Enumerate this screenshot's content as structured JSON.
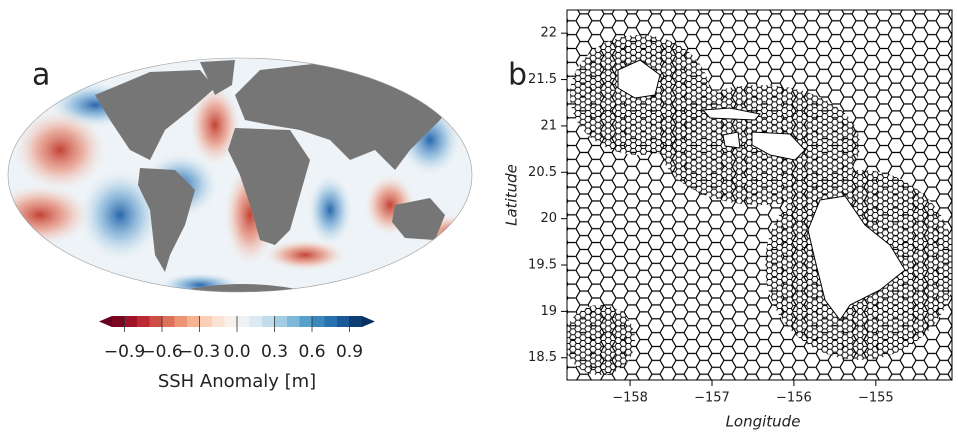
{
  "chart_data": [
    {
      "type": "map",
      "panel_label": "a",
      "colorbar": {
        "label": "SSH Anomaly [m]",
        "lim": [
          -1,
          1
        ],
        "ticks": [
          {
            "value": -0.9,
            "label": "−0.9"
          },
          {
            "value": -0.6,
            "label": "−0.6"
          },
          {
            "value": -0.3,
            "label": "−0.3"
          },
          {
            "value": 0,
            "label": "0.0"
          },
          0.3,
          0.6,
          0.9
        ],
        "colors": [
          "#67001f",
          "#b2182b",
          "#d6604d",
          "#f4a582",
          "#fddbc7",
          "#f7f7f7",
          "#d1e5f0",
          "#92c5de",
          "#4393c3",
          "#2166ac",
          "#053061"
        ]
      }
    },
    {
      "type": "mesh",
      "panel_label": "b",
      "xlabel": "Longitude",
      "ylabel": "Latitude",
      "xlim": [
        -158.77,
        -154.07
      ],
      "ylim": [
        18.26,
        22.25
      ],
      "xticks": [
        {
          "value": -158,
          "label": "−158"
        },
        {
          "value": -157,
          "label": "−157"
        },
        {
          "value": -156,
          "label": "−156"
        },
        {
          "value": -155,
          "label": "−155"
        }
      ],
      "yticks": [
        18.5,
        19,
        19.5,
        20,
        20.5,
        21,
        21.5,
        22
      ]
    }
  ]
}
